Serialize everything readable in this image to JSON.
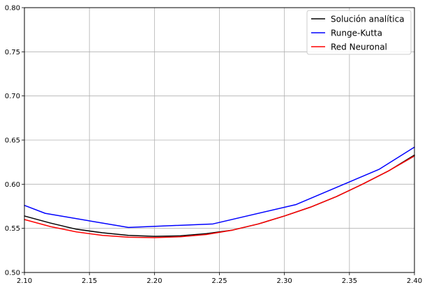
{
  "chart_data": {
    "type": "line",
    "title": "",
    "xlabel": "",
    "ylabel": "",
    "xlim": [
      2.1,
      2.4
    ],
    "ylim": [
      0.5,
      0.8
    ],
    "grid": true,
    "legend_position": "top-right",
    "x_ticks": [
      "2.10",
      "2.15",
      "2.20",
      "2.25",
      "2.30",
      "2.35",
      "2.40"
    ],
    "y_ticks": [
      "0.50",
      "0.55",
      "0.60",
      "0.65",
      "0.70",
      "0.75",
      "0.80"
    ],
    "series": [
      {
        "name": "Solución analítica",
        "color": "#000000",
        "x": [
          2.1,
          2.12,
          2.14,
          2.16,
          2.18,
          2.2,
          2.22,
          2.24,
          2.26,
          2.28,
          2.3,
          2.32,
          2.34,
          2.36,
          2.38,
          2.4
        ],
        "y": [
          0.564,
          0.556,
          0.549,
          0.545,
          0.542,
          0.541,
          0.5415,
          0.544,
          0.548,
          0.555,
          0.564,
          0.574,
          0.586,
          0.6,
          0.615,
          0.633
        ]
      },
      {
        "name": "Runge-Kutta",
        "color": "#0000ff",
        "x": [
          2.1,
          2.116,
          2.18,
          2.245,
          2.309,
          2.373,
          2.4
        ],
        "y": [
          0.576,
          0.567,
          0.551,
          0.555,
          0.577,
          0.617,
          0.642
        ]
      },
      {
        "name": "Red Neuronal",
        "color": "#ff0000",
        "x": [
          2.1,
          2.12,
          2.14,
          2.16,
          2.18,
          2.2,
          2.22,
          2.24,
          2.26,
          2.28,
          2.3,
          2.32,
          2.34,
          2.36,
          2.38,
          2.4
        ],
        "y": [
          0.56,
          0.552,
          0.546,
          0.542,
          0.54,
          0.5395,
          0.5405,
          0.543,
          0.548,
          0.555,
          0.564,
          0.574,
          0.586,
          0.6,
          0.615,
          0.632
        ]
      }
    ]
  }
}
